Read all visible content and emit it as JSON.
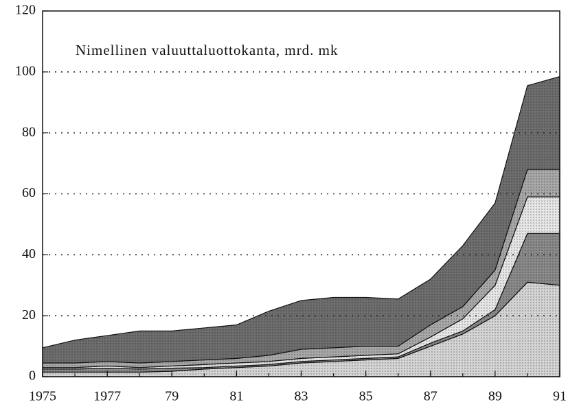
{
  "chart_data": {
    "type": "stacked_area",
    "title": "Nimellinen valuuttaluottokanta, mrd. mk",
    "x": [
      1975,
      1976,
      1977,
      1978,
      1979,
      1980,
      1981,
      1982,
      1983,
      1984,
      1985,
      1986,
      1987,
      1988,
      1989,
      1990,
      1991
    ],
    "series": [
      {
        "color": "#d4d4d4",
        "values": [
          1.5,
          1.5,
          1.5,
          1.5,
          1.8,
          2.5,
          3,
          3.5,
          4.5,
          5,
          5.5,
          6,
          10,
          14,
          20,
          31,
          30
        ]
      },
      {
        "color": "#8a8a8a",
        "values": [
          1,
          1,
          1.3,
          1,
          1,
          0.5,
          0.5,
          0.5,
          0.5,
          0.5,
          0.5,
          0.5,
          1,
          1,
          2,
          16,
          17
        ]
      },
      {
        "color": "#e6e6e6",
        "values": [
          0.5,
          0.5,
          0.7,
          0.5,
          0.7,
          1,
          1,
          1,
          1,
          1,
          1,
          1,
          2,
          4,
          8,
          12,
          12
        ]
      },
      {
        "color": "#a8a8a8",
        "values": [
          1.5,
          1.5,
          1.5,
          1.5,
          1.5,
          1.5,
          1.5,
          2,
          3,
          3,
          3,
          2.5,
          4,
          4,
          5,
          9,
          9
        ]
      },
      {
        "color": "#6e6e6e",
        "values": [
          5,
          7.5,
          8.5,
          10.5,
          10,
          10.5,
          11,
          14.5,
          16,
          16.5,
          16,
          15.5,
          15,
          20,
          22,
          27.5,
          30.5
        ]
      }
    ],
    "xlim": [
      1975,
      1991
    ],
    "xticks": [
      {
        "value": 1975,
        "label": "1975"
      },
      {
        "value": 1977,
        "label": "1977"
      },
      {
        "value": 1979,
        "label": "79"
      },
      {
        "value": 1981,
        "label": "81"
      },
      {
        "value": 1983,
        "label": "83"
      },
      {
        "value": 1985,
        "label": "85"
      },
      {
        "value": 1987,
        "label": "87"
      },
      {
        "value": 1989,
        "label": "89"
      },
      {
        "value": 1991,
        "label": "91"
      }
    ],
    "ylim": [
      0,
      120
    ],
    "yticks": [
      0,
      20,
      40,
      60,
      80,
      100,
      120
    ],
    "grid": true
  }
}
